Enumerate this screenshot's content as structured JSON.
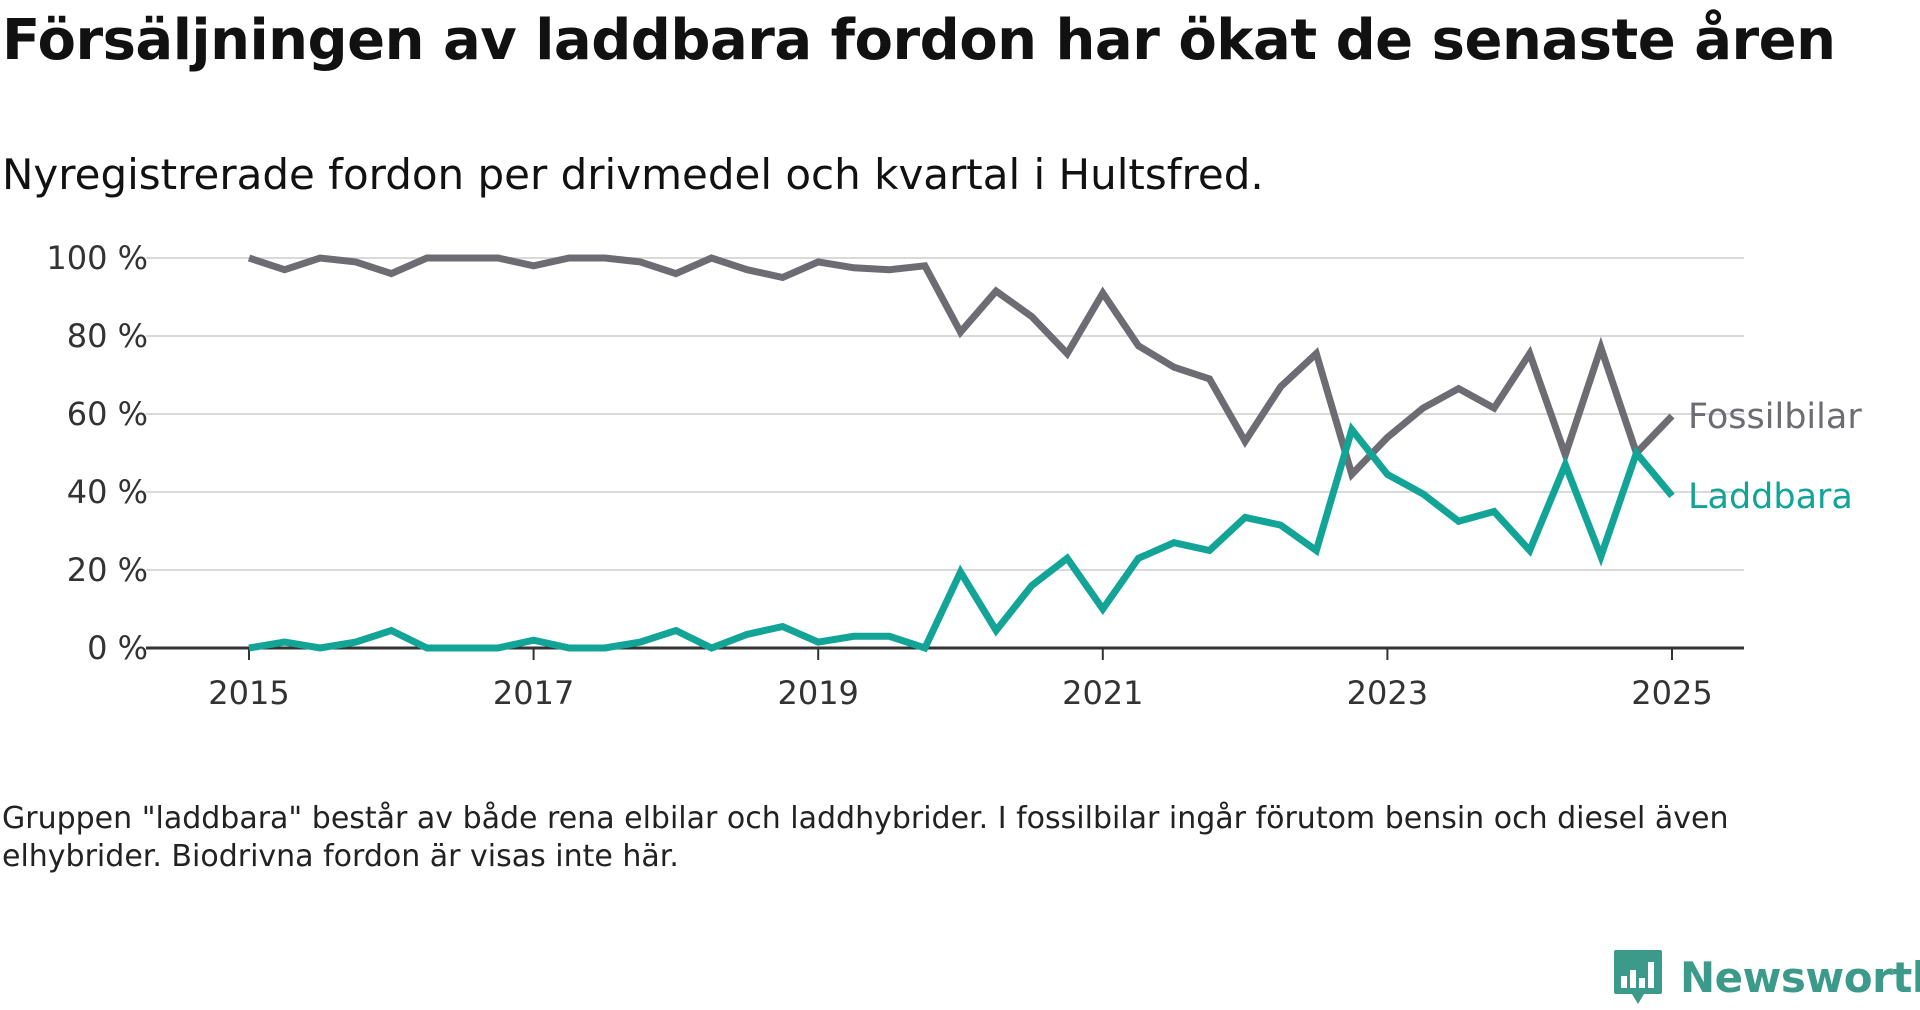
{
  "title": "Försäljningen av laddbara fordon har ökat de senaste åren",
  "subtitle": "Nyregistrerade fordon per drivmedel och kvartal i Hultsfred.",
  "footnote": "Gruppen \"laddbara\" består av både rena elbilar och laddhybrider. I fossilbilar ingår förutom bensin och diesel även elhybrider. Biodrivna fordon är visas inte här.",
  "brand": {
    "name": "Newsworthy",
    "icon": "newsworthy-logo-icon",
    "color": "#3b9a8a"
  },
  "chart_data": {
    "type": "line",
    "title": "Försäljningen av laddbara fordon har ökat de senaste åren",
    "subtitle": "Nyregistrerade fordon per drivmedel och kvartal i Hultsfred.",
    "x_ticks": [
      "2015",
      "2017",
      "2019",
      "2021",
      "2023",
      "2025"
    ],
    "y_ticks": [
      "0 %",
      "20 %",
      "40 %",
      "60 %",
      "80 %",
      "100 %"
    ],
    "ylim": [
      0,
      100
    ],
    "xlim": [
      2014.5,
      2025.5
    ],
    "grid": true,
    "legend": "direct labels at line ends (right)",
    "x": [
      2015.0,
      2015.25,
      2015.5,
      2015.75,
      2016.0,
      2016.25,
      2016.5,
      2016.75,
      2017.0,
      2017.25,
      2017.5,
      2017.75,
      2018.0,
      2018.25,
      2018.5,
      2018.75,
      2019.0,
      2019.25,
      2019.5,
      2019.75,
      2020.0,
      2020.25,
      2020.5,
      2020.75,
      2021.0,
      2021.25,
      2021.5,
      2021.75,
      2022.0,
      2022.25,
      2022.5,
      2022.75,
      2023.0,
      2023.25,
      2023.5,
      2023.75,
      2024.0,
      2024.25,
      2024.5,
      2024.75,
      2025.0
    ],
    "series": [
      {
        "name": "Fossilbilar",
        "color": "#6d6c73",
        "values": [
          100,
          97,
          100,
          99,
          96,
          100,
          100,
          100,
          98,
          100,
          100,
          99,
          96,
          100,
          97,
          95,
          99,
          97.5,
          97,
          98,
          81,
          91.5,
          85,
          75.5,
          91,
          77.5,
          72,
          69,
          53,
          67,
          75.5,
          44.5,
          54,
          61.5,
          66.5,
          61.5,
          75.5,
          49.5,
          77,
          50,
          59.5
        ]
      },
      {
        "name": "Laddbara",
        "color": "#12a496",
        "values": [
          0,
          1.5,
          0,
          1.5,
          4.5,
          0,
          0,
          0,
          2,
          0,
          0,
          1.5,
          4.5,
          0,
          3.5,
          5.5,
          1.5,
          3,
          3,
          0,
          19.5,
          4.5,
          16,
          23,
          10,
          23,
          27,
          25,
          33.5,
          31.5,
          25,
          56,
          44.5,
          39.5,
          32.5,
          35,
          25,
          47,
          23.5,
          50,
          39
        ]
      }
    ]
  }
}
